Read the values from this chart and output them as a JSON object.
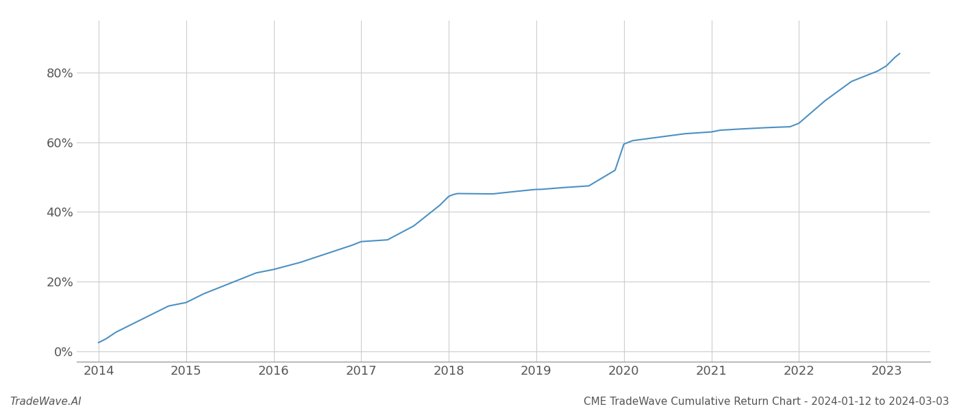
{
  "title": "CME TradeWave Cumulative Return Chart - 2024-01-12 to 2024-03-03",
  "watermark": "TradeWave.AI",
  "line_color": "#4a90c4",
  "background_color": "#ffffff",
  "grid_color": "#cccccc",
  "x_values": [
    2014.0,
    2014.08,
    2014.2,
    2014.4,
    2014.6,
    2014.8,
    2015.0,
    2015.2,
    2015.5,
    2015.8,
    2016.0,
    2016.3,
    2016.6,
    2016.9,
    2017.0,
    2017.3,
    2017.6,
    2017.9,
    2018.0,
    2018.05,
    2018.1,
    2018.5,
    2018.8,
    2019.0,
    2019.05,
    2019.3,
    2019.6,
    2019.9,
    2020.0,
    2020.05,
    2020.1,
    2020.4,
    2020.7,
    2021.0,
    2021.1,
    2021.3,
    2021.6,
    2021.9,
    2022.0,
    2022.3,
    2022.6,
    2022.9,
    2023.0,
    2023.1,
    2023.15
  ],
  "y_values": [
    2.5,
    3.5,
    5.5,
    8.0,
    10.5,
    13.0,
    14.0,
    16.5,
    19.5,
    22.5,
    23.5,
    25.5,
    28.0,
    30.5,
    31.5,
    32.0,
    36.0,
    42.0,
    44.5,
    45.0,
    45.3,
    45.2,
    46.0,
    46.5,
    46.5,
    47.0,
    47.5,
    52.0,
    59.5,
    60.0,
    60.5,
    61.5,
    62.5,
    63.0,
    63.5,
    63.8,
    64.2,
    64.5,
    65.5,
    72.0,
    77.5,
    80.5,
    82.0,
    84.5,
    85.5
  ],
  "xlim": [
    2013.75,
    2023.5
  ],
  "ylim": [
    -3,
    95
  ],
  "yticks": [
    0,
    20,
    40,
    60,
    80
  ],
  "xticks": [
    2014,
    2015,
    2016,
    2017,
    2018,
    2019,
    2020,
    2021,
    2022,
    2023
  ],
  "line_width": 1.5,
  "font_size_ticks": 13,
  "font_size_footer": 11
}
